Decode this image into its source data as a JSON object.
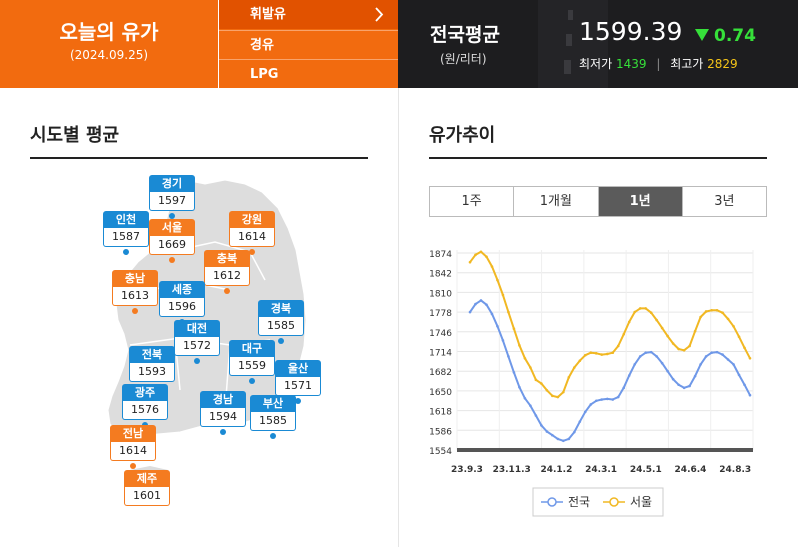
{
  "header": {
    "today_title": "오늘의 유가",
    "today_date": "(2024.09.25)",
    "fuel_menu": [
      {
        "label": "휘발유",
        "active": true
      },
      {
        "label": "경유",
        "active": false
      },
      {
        "label": "LPG",
        "active": false
      }
    ],
    "chevron": "chevron-right-icon",
    "national_label": "전국평균",
    "national_unit": "(원/리터)",
    "national_avg": "1599.39",
    "change_value": "0.74",
    "change_direction": "down",
    "min_label": "최저가",
    "min_value": "1439",
    "max_label": "최고가",
    "max_value": "2829",
    "colors": {
      "orange": "#f26b0f",
      "dark": "#1d1d1f",
      "up_green": "#36e03a",
      "max_yellow": "#f5c518"
    }
  },
  "regions_section": {
    "title": "시도별 평균",
    "regions": [
      {
        "name": "경기",
        "value": "1597",
        "color": "blue"
      },
      {
        "name": "인천",
        "value": "1587",
        "color": "blue"
      },
      {
        "name": "서울",
        "value": "1669",
        "color": "orange"
      },
      {
        "name": "강원",
        "value": "1614",
        "color": "orange"
      },
      {
        "name": "충북",
        "value": "1612",
        "color": "orange"
      },
      {
        "name": "충남",
        "value": "1613",
        "color": "orange"
      },
      {
        "name": "세종",
        "value": "1596",
        "color": "blue"
      },
      {
        "name": "경북",
        "value": "1585",
        "color": "blue"
      },
      {
        "name": "대전",
        "value": "1572",
        "color": "blue"
      },
      {
        "name": "전북",
        "value": "1593",
        "color": "blue"
      },
      {
        "name": "대구",
        "value": "1559",
        "color": "blue"
      },
      {
        "name": "울산",
        "value": "1571",
        "color": "blue"
      },
      {
        "name": "광주",
        "value": "1576",
        "color": "blue"
      },
      {
        "name": "경남",
        "value": "1594",
        "color": "blue"
      },
      {
        "name": "부산",
        "value": "1585",
        "color": "blue"
      },
      {
        "name": "전남",
        "value": "1614",
        "color": "orange"
      },
      {
        "name": "제주",
        "value": "1601",
        "color": "orange"
      }
    ]
  },
  "trend_section": {
    "title": "유가추이",
    "tabs": [
      {
        "label": "1주",
        "active": false
      },
      {
        "label": "1개월",
        "active": false
      },
      {
        "label": "1년",
        "active": true
      },
      {
        "label": "3년",
        "active": false
      }
    ]
  },
  "chart_data": {
    "type": "line",
    "y_ticks": [
      1874,
      1842,
      1810,
      1778,
      1746,
      1714,
      1682,
      1650,
      1618,
      1586,
      1554
    ],
    "ylim": [
      1554,
      1874
    ],
    "x_ticks": [
      "23.9.3",
      "23.11.3",
      "24.1.2",
      "24.3.1",
      "24.5.1",
      "24.6.4",
      "24.8.3"
    ],
    "grid": true,
    "legend_position": "bottom",
    "series": [
      {
        "name": "전국",
        "color": "#6f98e8",
        "values": [
          1778,
          1791,
          1797,
          1790,
          1775,
          1755,
          1732,
          1706,
          1680,
          1656,
          1638,
          1626,
          1610,
          1594,
          1584,
          1578,
          1572,
          1569,
          1572,
          1583,
          1600,
          1616,
          1628,
          1634,
          1636,
          1637,
          1636,
          1640,
          1655,
          1675,
          1693,
          1706,
          1712,
          1713,
          1706,
          1695,
          1682,
          1669,
          1660,
          1655,
          1658,
          1674,
          1693,
          1706,
          1712,
          1713,
          1709,
          1701,
          1693,
          1676,
          1660,
          1643
        ]
      },
      {
        "name": "서울",
        "color": "#f1b823",
        "values": [
          1859,
          1871,
          1876,
          1868,
          1852,
          1830,
          1806,
          1778,
          1751,
          1724,
          1703,
          1688,
          1668,
          1662,
          1651,
          1642,
          1640,
          1648,
          1672,
          1688,
          1699,
          1708,
          1712,
          1711,
          1709,
          1710,
          1712,
          1723,
          1742,
          1762,
          1778,
          1784,
          1784,
          1777,
          1765,
          1752,
          1739,
          1727,
          1718,
          1716,
          1723,
          1747,
          1770,
          1779,
          1781,
          1781,
          1777,
          1767,
          1755,
          1738,
          1720,
          1703
        ]
      }
    ]
  }
}
